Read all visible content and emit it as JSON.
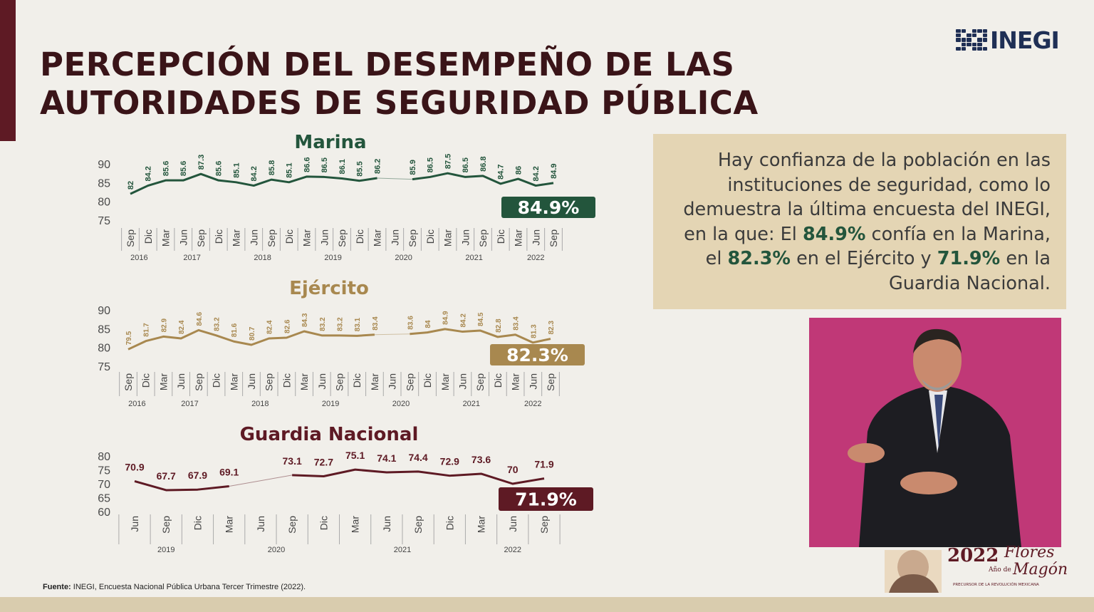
{
  "title": {
    "line1": "PERCEPCIÓN DEL DESEMPEÑO DE LAS",
    "line2": "AUTORIDADES DE SEGURIDAD PÚBLICA"
  },
  "logo": {
    "text": "INEGI"
  },
  "colors": {
    "marina": "#23553c",
    "ejercito": "#a8884f",
    "guardia": "#5e1a24",
    "accent_bar": "#5e1a24",
    "info_bg": "#e4d5b4"
  },
  "info": {
    "p1": "Hay confianza de la población en las instituciones de seguridad, como lo demuestra la última encuesta del INEGI, en la que:  El ",
    "v1": "84.9%",
    "p2": " confía en la Marina, el ",
    "v2": "82.3%",
    "p3": " en el Ejército y ",
    "v3": "71.9%",
    "p4": " en la  Guardia Nacional."
  },
  "source": {
    "label": "Fuente:",
    "text": " INEGI, Encuesta Nacional Pública Urbana Tercer Trimestre  (2022)."
  },
  "emblem": {
    "year": "2022",
    "small": "Año de",
    "name1": "Flores",
    "name2": "Magón",
    "caption": "PRECURSOR DE LA REVOLUCIÓN MEXICANA"
  },
  "chart_data": [
    {
      "type": "line",
      "title": "Marina",
      "yticks": [
        90,
        85,
        80,
        75
      ],
      "ylim": [
        75,
        90
      ],
      "x": [
        "Sep",
        "Dic",
        "Mar",
        "Jun",
        "Sep",
        "Dic",
        "Mar",
        "Jun",
        "Sep",
        "Dic",
        "Mar",
        "Jun",
        "Sep",
        "Dic",
        "Mar",
        "Jun",
        "Sep",
        "Dic",
        "Mar",
        "Jun",
        "Sep",
        "Dic",
        "Mar",
        "Jun",
        "Sep"
      ],
      "values": [
        82,
        84.2,
        85.6,
        85.6,
        87.3,
        85.6,
        85.1,
        84.2,
        85.8,
        85.1,
        86.6,
        86.5,
        86.1,
        85.5,
        86.2,
        null,
        85.9,
        86.5,
        87.5,
        86.5,
        86.8,
        84.7,
        86,
        84.2,
        84.9
      ],
      "years": [
        {
          "label": "2016",
          "from": 0,
          "to": 1
        },
        {
          "label": "2017",
          "from": 2,
          "to": 5
        },
        {
          "label": "2018",
          "from": 6,
          "to": 9
        },
        {
          "label": "2019",
          "from": 10,
          "to": 13
        },
        {
          "label": "2020",
          "from": 14,
          "to": 17
        },
        {
          "label": "2021",
          "from": 18,
          "to": 21
        },
        {
          "label": "2022",
          "from": 22,
          "to": 24
        }
      ],
      "badge": "84.9%"
    },
    {
      "type": "line",
      "title": "Ejército",
      "yticks": [
        90,
        85,
        80,
        75
      ],
      "ylim": [
        75,
        90
      ],
      "x": [
        "Sep",
        "Dic",
        "Mar",
        "Jun",
        "Sep",
        "Dic",
        "Mar",
        "Jun",
        "Sep",
        "Dic",
        "Mar",
        "Jun",
        "Sep",
        "Dic",
        "Mar",
        "Jun",
        "Sep",
        "Dic",
        "Mar",
        "Jun",
        "Sep",
        "Dic",
        "Mar",
        "Jun",
        "Sep"
      ],
      "values": [
        79.5,
        81.7,
        82.9,
        82.4,
        84.6,
        83.2,
        81.6,
        80.7,
        82.4,
        82.6,
        84.3,
        83.2,
        83.2,
        83.1,
        83.4,
        null,
        83.6,
        84,
        84.9,
        84.2,
        84.5,
        82.8,
        83.4,
        81.3,
        82.3
      ],
      "years": [
        {
          "label": "2016",
          "from": 0,
          "to": 1
        },
        {
          "label": "2017",
          "from": 2,
          "to": 5
        },
        {
          "label": "2018",
          "from": 6,
          "to": 9
        },
        {
          "label": "2019",
          "from": 10,
          "to": 13
        },
        {
          "label": "2020",
          "from": 14,
          "to": 17
        },
        {
          "label": "2021",
          "from": 18,
          "to": 21
        },
        {
          "label": "2022",
          "from": 22,
          "to": 24
        }
      ],
      "badge": "82.3%"
    },
    {
      "type": "line",
      "title": "Guardia Nacional",
      "yticks": [
        80,
        75,
        70,
        65,
        60
      ],
      "ylim": [
        60,
        80
      ],
      "x": [
        "Jun",
        "Sep",
        "Dic",
        "Mar",
        "Jun",
        "Sep",
        "Dic",
        "Mar",
        "Jun",
        "Sep",
        "Dic",
        "Mar",
        "Jun",
        "Sep"
      ],
      "values": [
        70.9,
        67.7,
        67.9,
        69.1,
        null,
        73.1,
        72.7,
        75.1,
        74.1,
        74.4,
        72.9,
        73.6,
        70,
        71.9
      ],
      "years": [
        {
          "label": "2019",
          "from": 0,
          "to": 2
        },
        {
          "label": "2020",
          "from": 3,
          "to": 6
        },
        {
          "label": "2021",
          "from": 7,
          "to": 10
        },
        {
          "label": "2022",
          "from": 11,
          "to": 13
        }
      ],
      "badge": "71.9%"
    }
  ]
}
